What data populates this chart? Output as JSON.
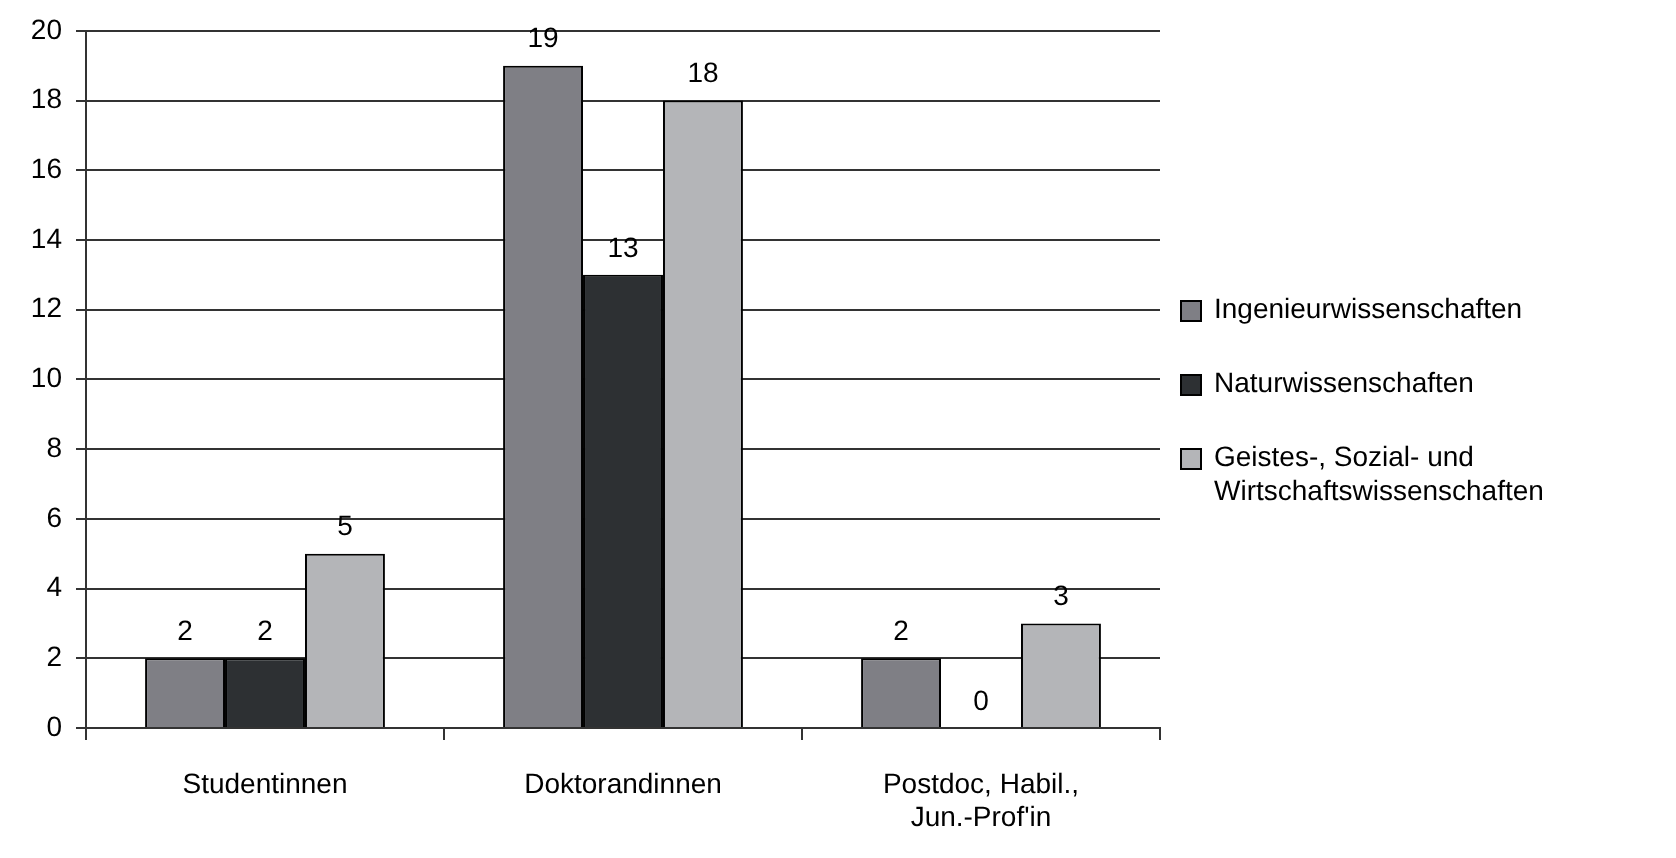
{
  "chart_data": {
    "type": "bar",
    "categories": [
      "Studentinnen",
      "Doktorandinnen",
      "Postdoc, Habil., Jun.-Prof'in"
    ],
    "series": [
      {
        "name": "Ingenieurwissenschaften",
        "color": "#7f7f85",
        "values": [
          2,
          19,
          2
        ]
      },
      {
        "name": "Naturwissenschaften",
        "color": "#2d3033",
        "values": [
          2,
          13,
          0
        ]
      },
      {
        "name": "Geistes-, Sozial- und Wirtschaftswissenschaften",
        "color": "#b4b5b8",
        "values": [
          5,
          18,
          3
        ]
      }
    ],
    "ylim": [
      0,
      20
    ],
    "yticks": [
      0,
      2,
      4,
      6,
      8,
      10,
      12,
      14,
      16,
      18,
      20
    ],
    "grid": "y",
    "legend": "right",
    "data_labels": true
  }
}
